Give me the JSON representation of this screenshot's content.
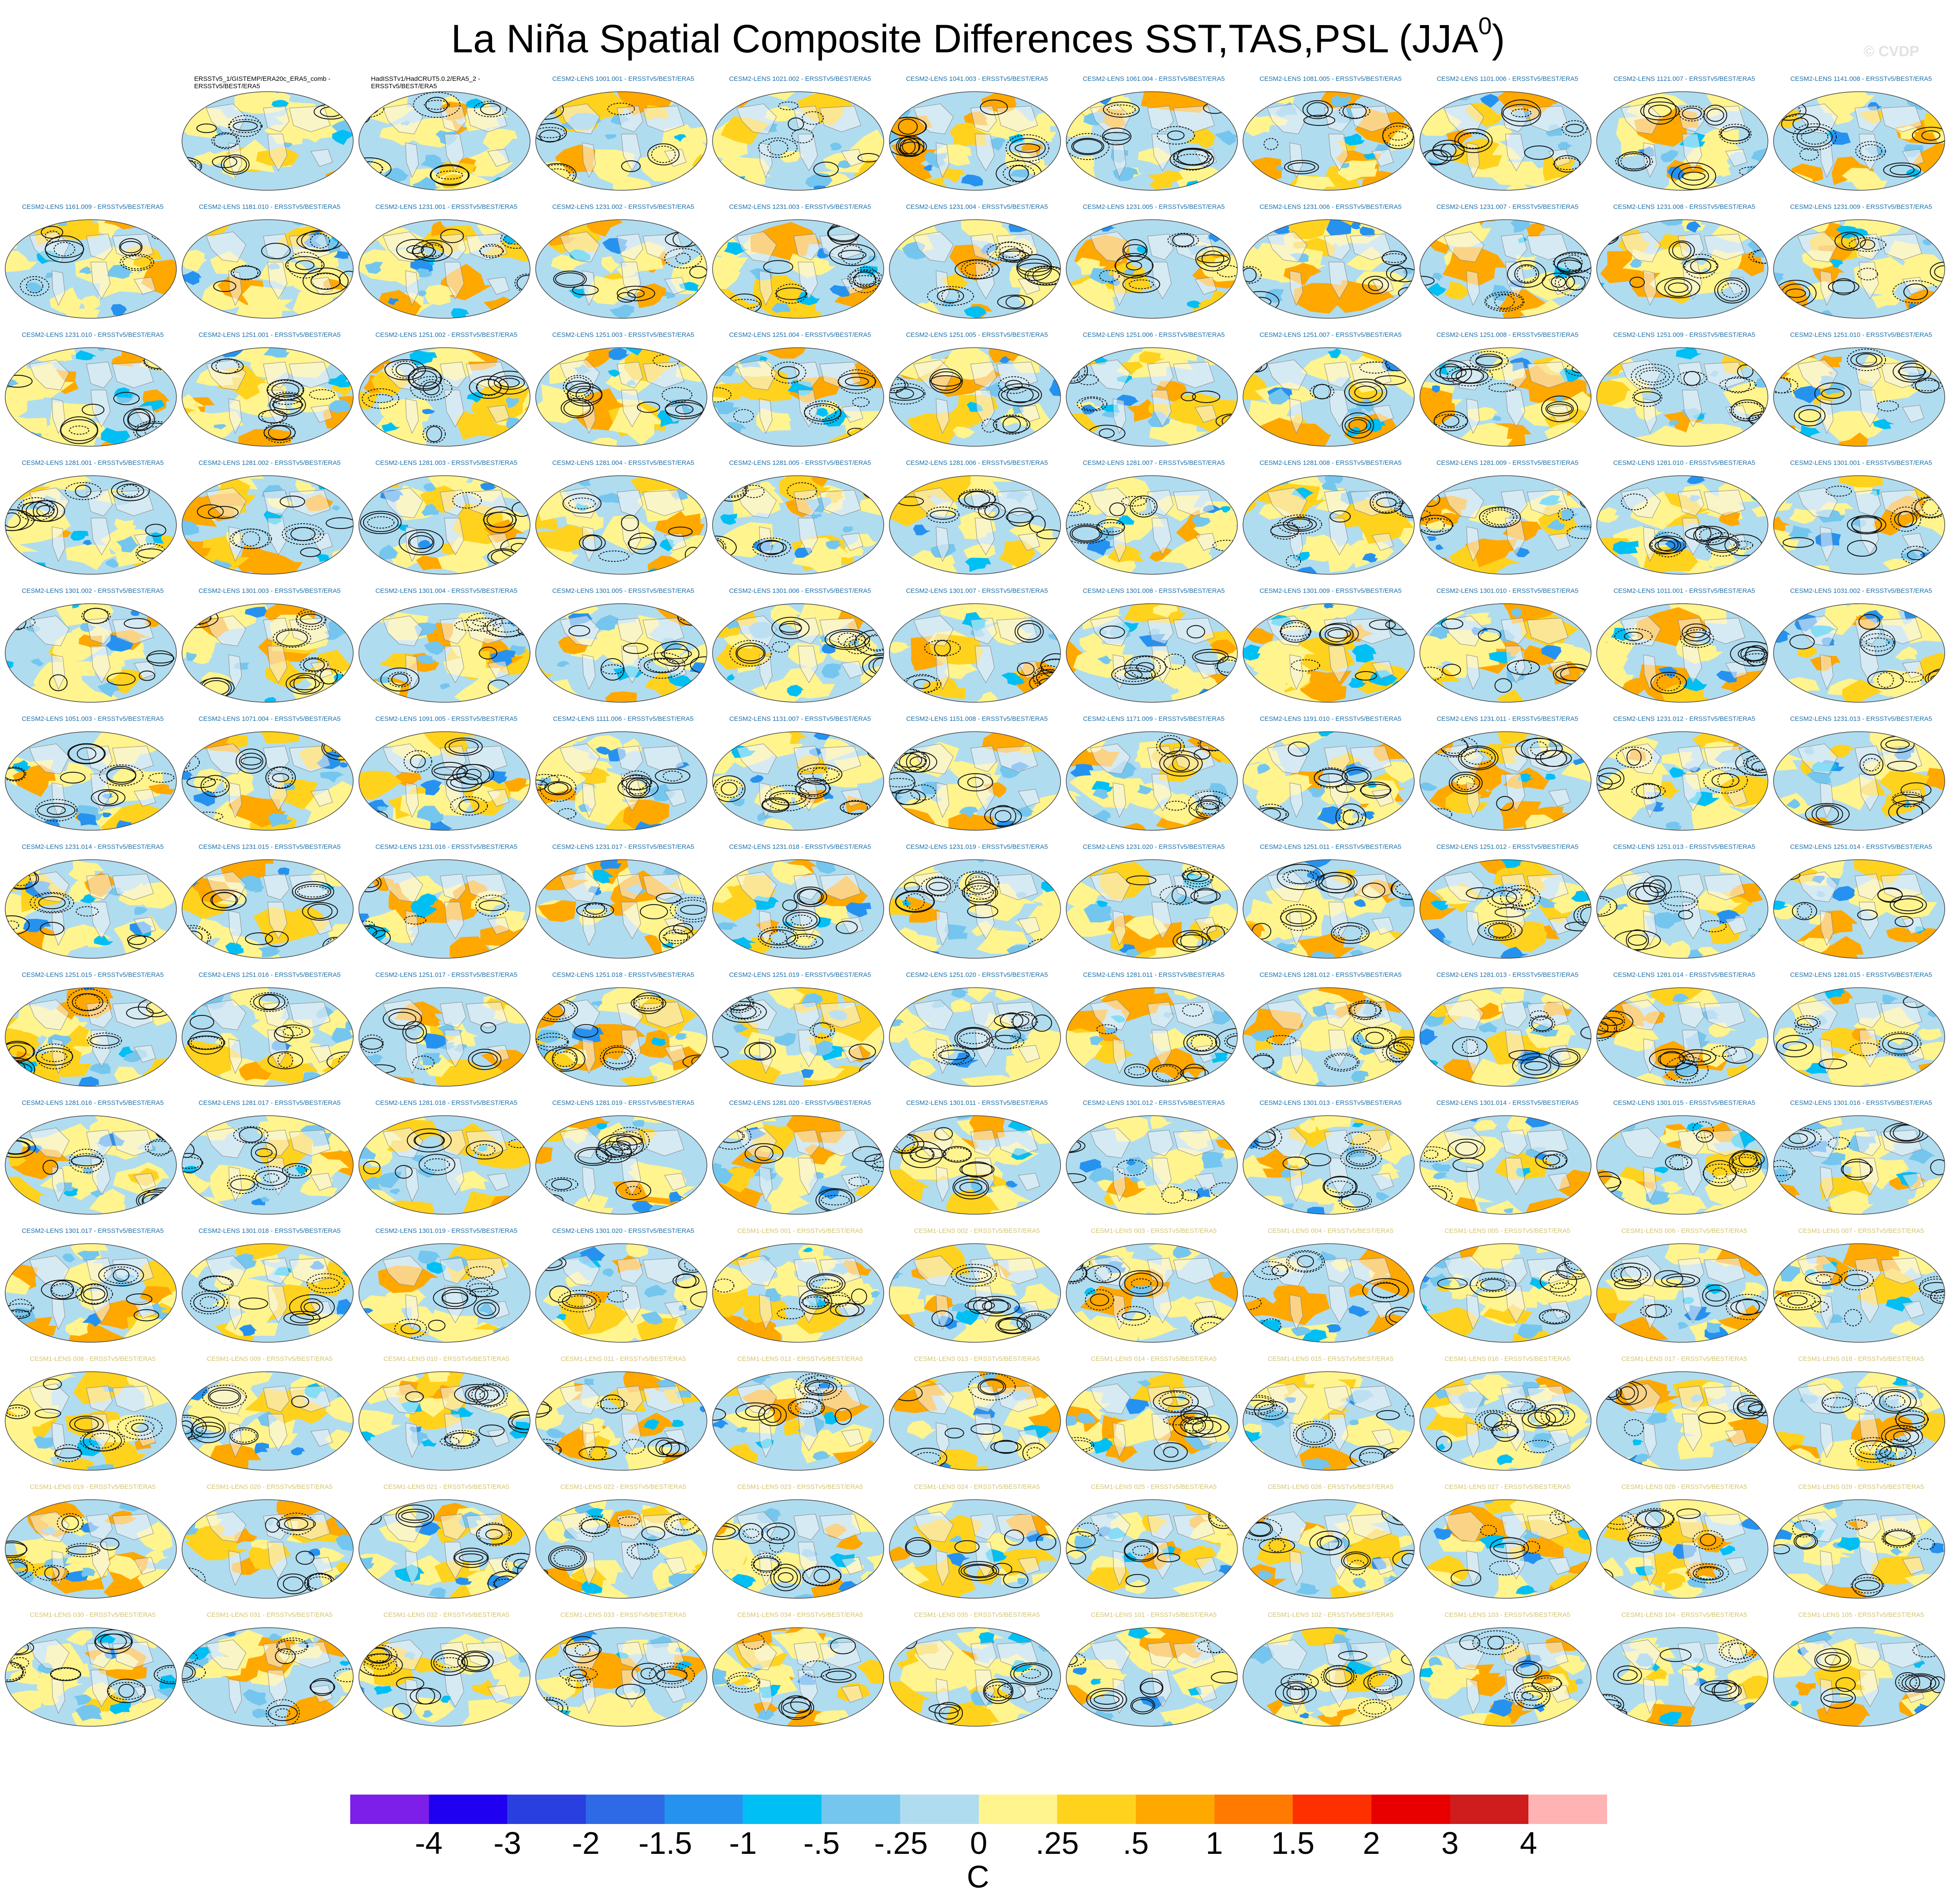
{
  "title_main": "La Niña Spatial Composite Differences SST,TAS,PSL (JJA",
  "title_sup": "0",
  "title_close": ")",
  "watermark": "© CVDP",
  "colors": {
    "ocean_base": "#b0dcf0",
    "warm": "#fff48e",
    "land": "#f5f5f5",
    "contour": "#111111",
    "cesm2_title": "#1c6fa8",
    "cesm1_title": "#d2c470",
    "obs_title": "#000000"
  },
  "panels": [
    {
      "title": "ERSSTv5_1/GISTEMP/ERA20c_ERA5_comb - ERSSTv5/BEST/ERA5",
      "group": "obs"
    },
    {
      "title": "HadISSTv1/HadCRUT5.0.2/ERA5_2 - ERSSTv5/BEST/ERA5",
      "group": "obs"
    },
    {
      "title": "CESM2-LENS 1001.001 - ERSSTv5/BEST/ERA5",
      "group": "c2"
    },
    {
      "title": "CESM2-LENS 1021.002 - ERSSTv5/BEST/ERA5",
      "group": "c2"
    },
    {
      "title": "CESM2-LENS 1041.003 - ERSSTv5/BEST/ERA5",
      "group": "c2"
    },
    {
      "title": "CESM2-LENS 1061.004 - ERSSTv5/BEST/ERA5",
      "group": "c2"
    },
    {
      "title": "CESM2-LENS 1081.005 - ERSSTv5/BEST/ERA5",
      "group": "c2"
    },
    {
      "title": "CESM2-LENS 1101.006 - ERSSTv5/BEST/ERA5",
      "group": "c2"
    },
    {
      "title": "CESM2-LENS 1121.007 - ERSSTv5/BEST/ERA5",
      "group": "c2"
    },
    {
      "title": "CESM2-LENS 1141.008 - ERSSTv5/BEST/ERA5",
      "group": "c2"
    },
    {
      "title": "CESM2-LENS 1161.009 - ERSSTv5/BEST/ERA5",
      "group": "c2"
    },
    {
      "title": "CESM2-LENS 1181.010 - ERSSTv5/BEST/ERA5",
      "group": "c2"
    },
    {
      "title": "CESM2-LENS 1231.001 - ERSSTv5/BEST/ERA5",
      "group": "c2"
    },
    {
      "title": "CESM2-LENS 1231.002 - ERSSTv5/BEST/ERA5",
      "group": "c2"
    },
    {
      "title": "CESM2-LENS 1231.003 - ERSSTv5/BEST/ERA5",
      "group": "c2"
    },
    {
      "title": "CESM2-LENS 1231.004 - ERSSTv5/BEST/ERA5",
      "group": "c2"
    },
    {
      "title": "CESM2-LENS 1231.005 - ERSSTv5/BEST/ERA5",
      "group": "c2"
    },
    {
      "title": "CESM2-LENS 1231.006 - ERSSTv5/BEST/ERA5",
      "group": "c2"
    },
    {
      "title": "CESM2-LENS 1231.007 - ERSSTv5/BEST/ERA5",
      "group": "c2"
    },
    {
      "title": "CESM2-LENS 1231.008 - ERSSTv5/BEST/ERA5",
      "group": "c2"
    },
    {
      "title": "CESM2-LENS 1231.009 - ERSSTv5/BEST/ERA5",
      "group": "c2"
    },
    {
      "title": "CESM2-LENS 1231.010 - ERSSTv5/BEST/ERA5",
      "group": "c2"
    },
    {
      "title": "CESM2-LENS 1251.001 - ERSSTv5/BEST/ERA5",
      "group": "c2"
    },
    {
      "title": "CESM2-LENS 1251.002 - ERSSTv5/BEST/ERA5",
      "group": "c2"
    },
    {
      "title": "CESM2-LENS 1251.003 - ERSSTv5/BEST/ERA5",
      "group": "c2"
    },
    {
      "title": "CESM2-LENS 1251.004 - ERSSTv5/BEST/ERA5",
      "group": "c2"
    },
    {
      "title": "CESM2-LENS 1251.005 - ERSSTv5/BEST/ERA5",
      "group": "c2"
    },
    {
      "title": "CESM2-LENS 1251.006 - ERSSTv5/BEST/ERA5",
      "group": "c2"
    },
    {
      "title": "CESM2-LENS 1251.007 - ERSSTv5/BEST/ERA5",
      "group": "c2"
    },
    {
      "title": "CESM2-LENS 1251.008 - ERSSTv5/BEST/ERA5",
      "group": "c2"
    },
    {
      "title": "CESM2-LENS 1251.009 - ERSSTv5/BEST/ERA5",
      "group": "c2"
    },
    {
      "title": "CESM2-LENS 1251.010 - ERSSTv5/BEST/ERA5",
      "group": "c2"
    },
    {
      "title": "CESM2-LENS 1281.001 - ERSSTv5/BEST/ERA5",
      "group": "c2"
    },
    {
      "title": "CESM2-LENS 1281.002 - ERSSTv5/BEST/ERA5",
      "group": "c2"
    },
    {
      "title": "CESM2-LENS 1281.003 - ERSSTv5/BEST/ERA5",
      "group": "c2"
    },
    {
      "title": "CESM2-LENS 1281.004 - ERSSTv5/BEST/ERA5",
      "group": "c2"
    },
    {
      "title": "CESM2-LENS 1281.005 - ERSSTv5/BEST/ERA5",
      "group": "c2"
    },
    {
      "title": "CESM2-LENS 1281.006 - ERSSTv5/BEST/ERA5",
      "group": "c2"
    },
    {
      "title": "CESM2-LENS 1281.007 - ERSSTv5/BEST/ERA5",
      "group": "c2"
    },
    {
      "title": "CESM2-LENS 1281.008 - ERSSTv5/BEST/ERA5",
      "group": "c2"
    },
    {
      "title": "CESM2-LENS 1281.009 - ERSSTv5/BEST/ERA5",
      "group": "c2"
    },
    {
      "title": "CESM2-LENS 1281.010 - ERSSTv5/BEST/ERA5",
      "group": "c2"
    },
    {
      "title": "CESM2-LENS 1301.001 - ERSSTv5/BEST/ERA5",
      "group": "c2"
    },
    {
      "title": "CESM2-LENS 1301.002 - ERSSTv5/BEST/ERA5",
      "group": "c2"
    },
    {
      "title": "CESM2-LENS 1301.003 - ERSSTv5/BEST/ERA5",
      "group": "c2"
    },
    {
      "title": "CESM2-LENS 1301.004 - ERSSTv5/BEST/ERA5",
      "group": "c2"
    },
    {
      "title": "CESM2-LENS 1301.005 - ERSSTv5/BEST/ERA5",
      "group": "c2"
    },
    {
      "title": "CESM2-LENS 1301.006 - ERSSTv5/BEST/ERA5",
      "group": "c2"
    },
    {
      "title": "CESM2-LENS 1301.007 - ERSSTv5/BEST/ERA5",
      "group": "c2"
    },
    {
      "title": "CESM2-LENS 1301.008 - ERSSTv5/BEST/ERA5",
      "group": "c2"
    },
    {
      "title": "CESM2-LENS 1301.009 - ERSSTv5/BEST/ERA5",
      "group": "c2"
    },
    {
      "title": "CESM2-LENS 1301.010 - ERSSTv5/BEST/ERA5",
      "group": "c2"
    },
    {
      "title": "CESM2-LENS 1011.001 - ERSSTv5/BEST/ERA5",
      "group": "c2"
    },
    {
      "title": "CESM2-LENS 1031.002 - ERSSTv5/BEST/ERA5",
      "group": "c2"
    },
    {
      "title": "CESM2-LENS 1051.003 - ERSSTv5/BEST/ERA5",
      "group": "c2"
    },
    {
      "title": "CESM2-LENS 1071.004 - ERSSTv5/BEST/ERA5",
      "group": "c2"
    },
    {
      "title": "CESM2-LENS 1091.005 - ERSSTv5/BEST/ERA5",
      "group": "c2"
    },
    {
      "title": "CESM2-LENS 1111.006 - ERSSTv5/BEST/ERA5",
      "group": "c2"
    },
    {
      "title": "CESM2-LENS 1131.007 - ERSSTv5/BEST/ERA5",
      "group": "c2"
    },
    {
      "title": "CESM2-LENS 1151.008 - ERSSTv5/BEST/ERA5",
      "group": "c2"
    },
    {
      "title": "CESM2-LENS 1171.009 - ERSSTv5/BEST/ERA5",
      "group": "c2"
    },
    {
      "title": "CESM2-LENS 1191.010 - ERSSTv5/BEST/ERA5",
      "group": "c2"
    },
    {
      "title": "CESM2-LENS 1231.011 - ERSSTv5/BEST/ERA5",
      "group": "c2"
    },
    {
      "title": "CESM2-LENS 1231.012 - ERSSTv5/BEST/ERA5",
      "group": "c2"
    },
    {
      "title": "CESM2-LENS 1231.013 - ERSSTv5/BEST/ERA5",
      "group": "c2"
    },
    {
      "title": "CESM2-LENS 1231.014 - ERSSTv5/BEST/ERA5",
      "group": "c2"
    },
    {
      "title": "CESM2-LENS 1231.015 - ERSSTv5/BEST/ERA5",
      "group": "c2"
    },
    {
      "title": "CESM2-LENS 1231.016 - ERSSTv5/BEST/ERA5",
      "group": "c2"
    },
    {
      "title": "CESM2-LENS 1231.017 - ERSSTv5/BEST/ERA5",
      "group": "c2"
    },
    {
      "title": "CESM2-LENS 1231.018 - ERSSTv5/BEST/ERA5",
      "group": "c2"
    },
    {
      "title": "CESM2-LENS 1231.019 - ERSSTv5/BEST/ERA5",
      "group": "c2"
    },
    {
      "title": "CESM2-LENS 1231.020 - ERSSTv5/BEST/ERA5",
      "group": "c2"
    },
    {
      "title": "CESM2-LENS 1251.011 - ERSSTv5/BEST/ERA5",
      "group": "c2"
    },
    {
      "title": "CESM2-LENS 1251.012 - ERSSTv5/BEST/ERA5",
      "group": "c2"
    },
    {
      "title": "CESM2-LENS 1251.013 - ERSSTv5/BEST/ERA5",
      "group": "c2"
    },
    {
      "title": "CESM2-LENS 1251.014 - ERSSTv5/BEST/ERA5",
      "group": "c2"
    },
    {
      "title": "CESM2-LENS 1251.015 - ERSSTv5/BEST/ERA5",
      "group": "c2"
    },
    {
      "title": "CESM2-LENS 1251.016 - ERSSTv5/BEST/ERA5",
      "group": "c2"
    },
    {
      "title": "CESM2-LENS 1251.017 - ERSSTv5/BEST/ERA5",
      "group": "c2"
    },
    {
      "title": "CESM2-LENS 1251.018 - ERSSTv5/BEST/ERA5",
      "group": "c2"
    },
    {
      "title": "CESM2-LENS 1251.019 - ERSSTv5/BEST/ERA5",
      "group": "c2"
    },
    {
      "title": "CESM2-LENS 1251.020 - ERSSTv5/BEST/ERA5",
      "group": "c2"
    },
    {
      "title": "CESM2-LENS 1281.011 - ERSSTv5/BEST/ERA5",
      "group": "c2"
    },
    {
      "title": "CESM2-LENS 1281.012 - ERSSTv5/BEST/ERA5",
      "group": "c2"
    },
    {
      "title": "CESM2-LENS 1281.013 - ERSSTv5/BEST/ERA5",
      "group": "c2"
    },
    {
      "title": "CESM2-LENS 1281.014 - ERSSTv5/BEST/ERA5",
      "group": "c2"
    },
    {
      "title": "CESM2-LENS 1281.015 - ERSSTv5/BEST/ERA5",
      "group": "c2"
    },
    {
      "title": "CESM2-LENS 1281.016 - ERSSTv5/BEST/ERA5",
      "group": "c2"
    },
    {
      "title": "CESM2-LENS 1281.017 - ERSSTv5/BEST/ERA5",
      "group": "c2"
    },
    {
      "title": "CESM2-LENS 1281.018 - ERSSTv5/BEST/ERA5",
      "group": "c2"
    },
    {
      "title": "CESM2-LENS 1281.019 - ERSSTv5/BEST/ERA5",
      "group": "c2"
    },
    {
      "title": "CESM2-LENS 1281.020 - ERSSTv5/BEST/ERA5",
      "group": "c2"
    },
    {
      "title": "CESM2-LENS 1301.011 - ERSSTv5/BEST/ERA5",
      "group": "c2"
    },
    {
      "title": "CESM2-LENS 1301.012 - ERSSTv5/BEST/ERA5",
      "group": "c2"
    },
    {
      "title": "CESM2-LENS 1301.013 - ERSSTv5/BEST/ERA5",
      "group": "c2"
    },
    {
      "title": "CESM2-LENS 1301.014 - ERSSTv5/BEST/ERA5",
      "group": "c2"
    },
    {
      "title": "CESM2-LENS 1301.015 - ERSSTv5/BEST/ERA5",
      "group": "c2"
    },
    {
      "title": "CESM2-LENS 1301.016 - ERSSTv5/BEST/ERA5",
      "group": "c2"
    },
    {
      "title": "CESM2-LENS 1301.017 - ERSSTv5/BEST/ERA5",
      "group": "c2"
    },
    {
      "title": "CESM2-LENS 1301.018 - ERSSTv5/BEST/ERA5",
      "group": "c2"
    },
    {
      "title": "CESM2-LENS 1301.019 - ERSSTv5/BEST/ERA5",
      "group": "c2"
    },
    {
      "title": "CESM2-LENS 1301.020 - ERSSTv5/BEST/ERA5",
      "group": "c2"
    },
    {
      "title": "CESM1-LENS 001 - ERSSTv5/BEST/ERA5",
      "group": "c1"
    },
    {
      "title": "CESM1-LENS 002 - ERSSTv5/BEST/ERA5",
      "group": "c1"
    },
    {
      "title": "CESM1-LENS 003 - ERSSTv5/BEST/ERA5",
      "group": "c1"
    },
    {
      "title": "CESM1-LENS 004 - ERSSTv5/BEST/ERA5",
      "group": "c1"
    },
    {
      "title": "CESM1-LENS 005 - ERSSTv5/BEST/ERA5",
      "group": "c1"
    },
    {
      "title": "CESM1-LENS 006 - ERSSTv5/BEST/ERA5",
      "group": "c1"
    },
    {
      "title": "CESM1-LENS 007 - ERSSTv5/BEST/ERA5",
      "group": "c1"
    },
    {
      "title": "CESM1-LENS 008 - ERSSTv5/BEST/ERA5",
      "group": "c1"
    },
    {
      "title": "CESM1-LENS 009 - ERSSTv5/BEST/ERA5",
      "group": "c1"
    },
    {
      "title": "CESM1-LENS 010 - ERSSTv5/BEST/ERA5",
      "group": "c1"
    },
    {
      "title": "CESM1-LENS 011 - ERSSTv5/BEST/ERA5",
      "group": "c1"
    },
    {
      "title": "CESM1-LENS 012 - ERSSTv5/BEST/ERA5",
      "group": "c1"
    },
    {
      "title": "CESM1-LENS 013 - ERSSTv5/BEST/ERA5",
      "group": "c1"
    },
    {
      "title": "CESM1-LENS 014 - ERSSTv5/BEST/ERA5",
      "group": "c1"
    },
    {
      "title": "CESM1-LENS 015 - ERSSTv5/BEST/ERA5",
      "group": "c1"
    },
    {
      "title": "CESM1-LENS 016 - ERSSTv5/BEST/ERA5",
      "group": "c1"
    },
    {
      "title": "CESM1-LENS 017 - ERSSTv5/BEST/ERA5",
      "group": "c1"
    },
    {
      "title": "CESM1-LENS 018 - ERSSTv5/BEST/ERA5",
      "group": "c1"
    },
    {
      "title": "CESM1-LENS 019 - ERSSTv5/BEST/ERA5",
      "group": "c1"
    },
    {
      "title": "CESM1-LENS 020 - ERSSTv5/BEST/ERA5",
      "group": "c1"
    },
    {
      "title": "CESM1-LENS 021 - ERSSTv5/BEST/ERA5",
      "group": "c1"
    },
    {
      "title": "CESM1-LENS 022 - ERSSTv5/BEST/ERA5",
      "group": "c1"
    },
    {
      "title": "CESM1-LENS 023 - ERSSTv5/BEST/ERA5",
      "group": "c1"
    },
    {
      "title": "CESM1-LENS 024 - ERSSTv5/BEST/ERA5",
      "group": "c1"
    },
    {
      "title": "CESM1-LENS 025 - ERSSTv5/BEST/ERA5",
      "group": "c1"
    },
    {
      "title": "CESM1-LENS 026 - ERSSTv5/BEST/ERA5",
      "group": "c1"
    },
    {
      "title": "CESM1-LENS 027 - ERSSTv5/BEST/ERA5",
      "group": "c1"
    },
    {
      "title": "CESM1-LENS 028 - ERSSTv5/BEST/ERA5",
      "group": "c1"
    },
    {
      "title": "CESM1-LENS 029 - ERSSTv5/BEST/ERA5",
      "group": "c1"
    },
    {
      "title": "CESM1-LENS 030 - ERSSTv5/BEST/ERA5",
      "group": "c1"
    },
    {
      "title": "CESM1-LENS 031 - ERSSTv5/BEST/ERA5",
      "group": "c1"
    },
    {
      "title": "CESM1-LENS 032 - ERSSTv5/BEST/ERA5",
      "group": "c1"
    },
    {
      "title": "CESM1-LENS 033 - ERSSTv5/BEST/ERA5",
      "group": "c1"
    },
    {
      "title": "CESM1-LENS 034 - ERSSTv5/BEST/ERA5",
      "group": "c1"
    },
    {
      "title": "CESM1-LENS 035 - ERSSTv5/BEST/ERA5",
      "group": "c1"
    },
    {
      "title": "CESM1-LENS 101 - ERSSTv5/BEST/ERA5",
      "group": "c1"
    },
    {
      "title": "CESM1-LENS 102 - ERSSTv5/BEST/ERA5",
      "group": "c1"
    },
    {
      "title": "CESM1-LENS 103 - ERSSTv5/BEST/ERA5",
      "group": "c1"
    },
    {
      "title": "CESM1-LENS 104 - ERSSTv5/BEST/ERA5",
      "group": "c1"
    },
    {
      "title": "CESM1-LENS 105 - ERSSTv5/BEST/ERA5",
      "group": "c1"
    }
  ],
  "chart_data": {
    "type": "heatmap",
    "title": "La Niña Spatial Composite Differences SST,TAS,PSL (JJA0)",
    "colorbar": {
      "units": "C",
      "labels": [
        "-4",
        "-3",
        "-2",
        "-1.5",
        "-1",
        "-.5",
        "-.25",
        "0",
        ".25",
        ".5",
        "1",
        "1.5",
        "2",
        "3",
        "4"
      ],
      "levels": [
        -4,
        -3,
        -2,
        -1.5,
        -1,
        -0.5,
        -0.25,
        0,
        0.25,
        0.5,
        1,
        1.5,
        2,
        3,
        4
      ],
      "colors": [
        "#7d1fe8",
        "#1f00f0",
        "#2a3fe0",
        "#2e6ae6",
        "#2692f0",
        "#00bff5",
        "#75c6ee",
        "#b0dcf0",
        "#fff48e",
        "#ffd21e",
        "#ffa800",
        "#ff7a00",
        "#ff3000",
        "#e80000",
        "#cf1c1c",
        "#ffb3b3"
      ]
    }
  }
}
